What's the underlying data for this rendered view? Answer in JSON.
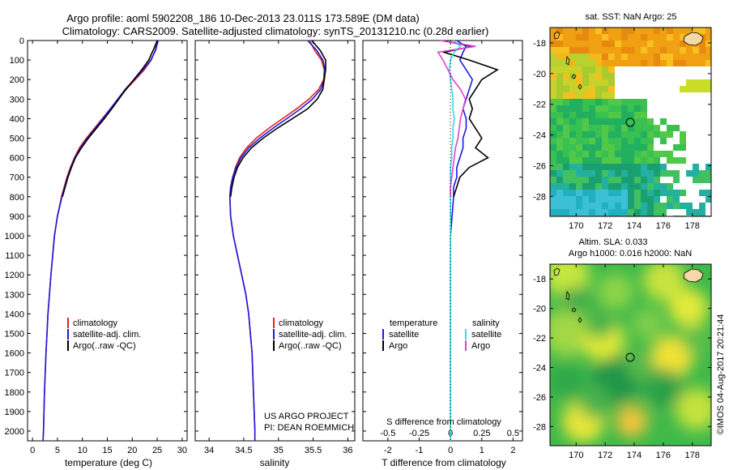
{
  "title": {
    "line1": "Argo profile: aoml 5902208_186 10-Dec-2013 23.011S 173.589E (DM data)",
    "line2": "Climatology: CARS2009. Satellite-adjusted climatology: synTS_20131210.nc (0.28d earlier)"
  },
  "colors": {
    "climatology": "#e8201c",
    "satellite": "#1a1adf",
    "argo": "#000000",
    "salinity_sat": "#2fe0e6",
    "salinity_argo": "#e040d6"
  },
  "chart_data": [
    {
      "type": "line",
      "id": "temperature",
      "xlabel": "temperature (deg C)",
      "ylabel": "depth",
      "xlim": [
        -1,
        31
      ],
      "ylim": [
        2050,
        0
      ],
      "xticks": [
        "0",
        "5",
        "10",
        "15",
        "20",
        "25",
        "30"
      ],
      "depth_ticks": [
        "0",
        "100",
        "200",
        "300",
        "400",
        "500",
        "600",
        "700",
        "800",
        "900",
        "1000",
        "1100",
        "1200",
        "1300",
        "1400",
        "1500",
        "1600",
        "1700",
        "1800",
        "1900",
        "2000"
      ],
      "legend": [
        "climatology",
        "satellite-adj. clim.",
        "Argo(..raw -QC)"
      ],
      "depth": [
        0,
        50,
        100,
        150,
        200,
        250,
        300,
        350,
        400,
        450,
        500,
        550,
        600,
        650,
        700,
        800,
        900,
        1000,
        1200,
        1400,
        1600,
        1800,
        2000,
        2050
      ],
      "series": [
        {
          "name": "climatology",
          "values": [
            25.0,
            24.6,
            23.8,
            22.4,
            20.6,
            18.8,
            17.2,
            15.6,
            14.0,
            12.4,
            10.8,
            9.4,
            8.4,
            7.6,
            6.9,
            5.8,
            5.0,
            4.4,
            3.7,
            3.1,
            2.7,
            2.4,
            2.2,
            2.1
          ]
        },
        {
          "name": "satellite-adj. clim.",
          "values": [
            25.2,
            24.7,
            23.7,
            22.2,
            20.4,
            18.6,
            17.1,
            15.6,
            14.1,
            12.6,
            11.0,
            9.6,
            8.5,
            7.7,
            7.0,
            5.9,
            5.0,
            4.4,
            3.7,
            3.1,
            2.7,
            2.4,
            2.2,
            2.1
          ]
        },
        {
          "name": "Argo(..raw -QC)",
          "values": [
            25.0,
            24.2,
            23.3,
            21.9,
            20.3,
            18.7,
            17.3,
            15.9,
            14.4,
            12.8,
            11.2,
            9.8,
            8.6,
            7.8,
            7.1,
            6.0
          ]
        }
      ]
    },
    {
      "type": "line",
      "id": "salinity",
      "xlabel": "salinity",
      "xlim": [
        33.8,
        36.1
      ],
      "ylim": [
        2050,
        0
      ],
      "xticks": [
        "34",
        "34.5",
        "35",
        "35.5",
        "36"
      ],
      "legend": [
        "climatology",
        "satellite-adj. clim.",
        "Argo(..raw -QC)"
      ],
      "annotation": [
        "US ARGO PROJECT",
        "PI: DEAN ROEMMICH"
      ],
      "depth": [
        0,
        50,
        100,
        150,
        200,
        250,
        300,
        350,
        400,
        450,
        500,
        550,
        600,
        650,
        700,
        750,
        800,
        900,
        1000,
        1100,
        1200,
        1300,
        1400,
        1600,
        1800,
        2000,
        2050
      ],
      "series": [
        {
          "name": "climatology",
          "values": [
            35.45,
            35.52,
            35.62,
            35.66,
            35.65,
            35.58,
            35.44,
            35.26,
            35.06,
            34.86,
            34.68,
            34.54,
            34.44,
            34.38,
            34.34,
            34.31,
            34.3,
            34.31,
            34.35,
            34.41,
            34.47,
            34.53,
            34.57,
            34.62,
            34.64,
            34.66,
            34.66
          ]
        },
        {
          "name": "satellite-adj. clim.",
          "values": [
            35.42,
            35.55,
            35.64,
            35.67,
            35.66,
            35.61,
            35.49,
            35.32,
            35.12,
            34.92,
            34.73,
            34.57,
            34.46,
            34.39,
            34.34,
            34.31,
            34.3,
            34.31,
            34.35,
            34.41,
            34.47,
            34.53,
            34.57,
            34.62,
            34.64,
            34.66,
            34.66
          ]
        },
        {
          "name": "Argo(..raw -QC)",
          "values": [
            35.48,
            35.6,
            35.68,
            35.68,
            35.66,
            35.64,
            35.56,
            35.42,
            35.2,
            34.98,
            34.78,
            34.61,
            34.49,
            34.41,
            34.36,
            34.33,
            34.31
          ]
        }
      ]
    },
    {
      "type": "line",
      "id": "difference",
      "xlabel": "T difference from climatology",
      "xlabel2": "S difference from climatology",
      "xlim": [
        -2.8,
        2.3
      ],
      "ylim": [
        2050,
        0
      ],
      "xticks": [
        "-2",
        "-1",
        "0",
        "1",
        "2"
      ],
      "sticks": [
        "-0.5",
        "-0.25",
        "0",
        "0.25",
        "0.5"
      ],
      "legend": {
        "temperature_header": "temperature",
        "salinity_header": "salinity",
        "items": [
          "satellite",
          "Argo",
          "satellite",
          "Argo"
        ]
      },
      "depth": [
        0,
        30,
        60,
        100,
        150,
        200,
        250,
        300,
        350,
        400,
        450,
        500,
        550,
        600,
        650,
        700,
        750,
        800,
        900,
        1000,
        1200,
        1400,
        1600,
        1800,
        2000,
        2050
      ],
      "series": [
        {
          "name": "temperature satellite",
          "values": [
            0.2,
            0.5,
            0.4,
            0.3,
            0.5,
            0.7,
            0.6,
            0.5,
            0.4,
            0.5,
            0.5,
            0.4,
            0.4,
            0.3,
            0.2,
            0.2,
            0.1,
            0.1,
            0.05,
            0.0,
            0.0,
            0.0,
            0.0,
            0.0,
            0.0,
            0.0
          ]
        },
        {
          "name": "temperature Argo",
          "values": [
            -0.3,
            0.7,
            -0.2,
            0.6,
            1.5,
            1.0,
            0.8,
            0.6,
            0.7,
            0.6,
            0.8,
            1.0,
            0.8,
            1.2,
            0.6,
            0.3,
            0.2,
            0.1
          ]
        },
        {
          "name": "salinity satellite",
          "values": [
            0.02,
            0.08,
            0.03,
            0.0,
            -0.01,
            0.0,
            0.01,
            0.02,
            0.02,
            0.03,
            0.02,
            0.02,
            0.01,
            0.01,
            0.0,
            0.0,
            0.0,
            0.0,
            0.0,
            0.0,
            0.0,
            0.0,
            0.0,
            0.0,
            0.0,
            0.0
          ]
        },
        {
          "name": "salinity Argo",
          "values": [
            -0.08,
            0.2,
            -0.1,
            -0.06,
            -0.02,
            0.02,
            0.08,
            0.12,
            0.1,
            0.08,
            0.07,
            0.06,
            0.04,
            0.03,
            0.02,
            0.01,
            0.0,
            0.0
          ]
        }
      ]
    },
    {
      "type": "heatmap",
      "id": "sst_map",
      "title": "sat. SST: NaN Argo: 25",
      "xticks": [
        "170",
        "172",
        "174",
        "176",
        "178"
      ],
      "yticks": [
        "-18",
        "-20",
        "-22",
        "-24",
        "-26",
        "-28"
      ],
      "marker": {
        "lon": 173.589,
        "lat": -23.011
      }
    },
    {
      "type": "heatmap",
      "id": "sla_map",
      "title": "Altim. SLA: 0.033",
      "subtitle": "Argo h1000: 0.016 h2000: NaN",
      "xticks": [
        "170",
        "172",
        "174",
        "176",
        "178"
      ],
      "yticks": [
        "-18",
        "-20",
        "-22",
        "-24",
        "-26",
        "-28"
      ],
      "marker": {
        "lon": 173.589,
        "lat": -23.011
      }
    }
  ],
  "watermark": "©IMOS 04-Aug-2017 20:21:44"
}
